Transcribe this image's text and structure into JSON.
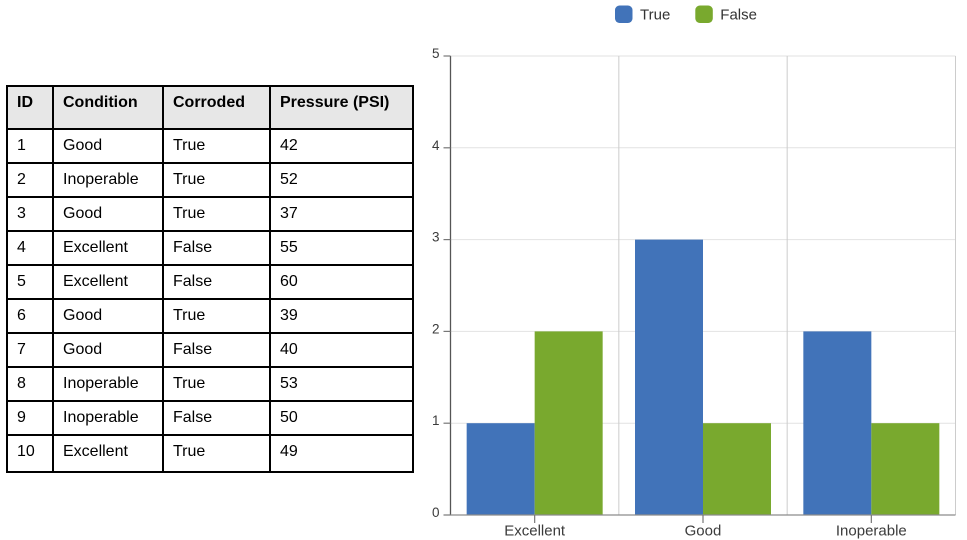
{
  "table": {
    "columns": [
      "ID",
      "Condition",
      "Corroded",
      "Pressure (PSI)"
    ],
    "rows": [
      [
        "1",
        "Good",
        "True",
        "42"
      ],
      [
        "2",
        "Inoperable",
        "True",
        "52"
      ],
      [
        "3",
        "Good",
        "True",
        "37"
      ],
      [
        "4",
        "Excellent",
        "False",
        "55"
      ],
      [
        "5",
        "Excellent",
        "False",
        "60"
      ],
      [
        "6",
        "Good",
        "True",
        "39"
      ],
      [
        "7",
        "Good",
        "False",
        "40"
      ],
      [
        "8",
        "Inoperable",
        "True",
        "53"
      ],
      [
        "9",
        "Inoperable",
        "False",
        "50"
      ],
      [
        "10",
        "Excellent",
        "True",
        "49"
      ]
    ],
    "header_background": "#e7e7e7",
    "border_color": "#000000"
  },
  "chart_data": {
    "type": "bar",
    "title": "",
    "xlabel": "",
    "ylabel": "",
    "categories": [
      "Excellent",
      "Good",
      "Inoperable"
    ],
    "series": [
      {
        "name": "True",
        "color": "#4173b9",
        "values": [
          1,
          3,
          2
        ]
      },
      {
        "name": "False",
        "color": "#79a92e",
        "values": [
          2,
          1,
          1
        ]
      }
    ],
    "ylim": [
      0,
      5
    ],
    "yticks": [
      "0",
      "1",
      "2",
      "3",
      "4",
      "5"
    ],
    "grid": true,
    "legend_position": "top",
    "colors": {
      "h_gridline": "#e2e2e2",
      "v_gridline": "#cccccc",
      "y_axis": "#555555",
      "x_axis": "#8c8c8c",
      "tick": "#777777",
      "label": "#3b3b3b"
    }
  }
}
